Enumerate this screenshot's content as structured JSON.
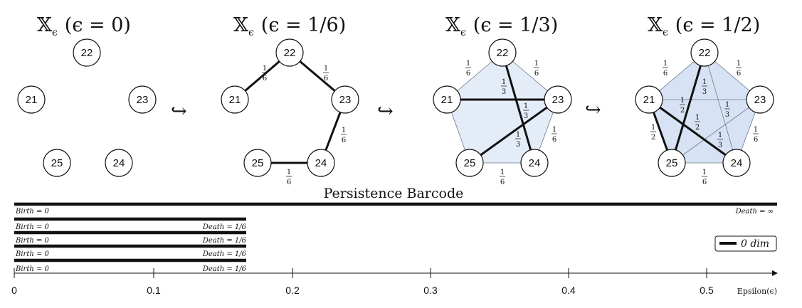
{
  "panels": [
    {
      "symbol": "𝕏",
      "sub": "ϵ",
      "param": "(ϵ = 0)"
    },
    {
      "symbol": "𝕏",
      "sub": "ϵ",
      "param": "(ϵ = 1/6)"
    },
    {
      "symbol": "𝕏",
      "sub": "ϵ",
      "param": "(ϵ = 1/3)"
    },
    {
      "symbol": "𝕏",
      "sub": "ϵ",
      "param": "(ϵ = 1/2)"
    }
  ],
  "nodes": [
    "22",
    "21",
    "23",
    "25",
    "24"
  ],
  "inclusion_arrow": "↪",
  "barcode": {
    "title": "Persistence Barcode",
    "axis_label": "Epsilon(ϵ)",
    "ticks": [
      "0",
      "0.1",
      "0.2",
      "0.3",
      "0.4",
      "0.5"
    ],
    "legend": "0 dim",
    "bars": [
      {
        "birth_label": "Birth = 0",
        "death_label": "Death = ∞",
        "birth": 0,
        "death": "infinity"
      },
      {
        "birth_label": "Birth = 0",
        "death_label": "Death = 1/6",
        "birth": 0,
        "death": 0.1667
      },
      {
        "birth_label": "Birth = 0",
        "death_label": "Death = 1/6",
        "birth": 0,
        "death": 0.1667
      },
      {
        "birth_label": "Birth = 0",
        "death_label": "Death = 1/6",
        "birth": 0,
        "death": 0.1667
      },
      {
        "birth_label": "Birth = 0",
        "death_label": "Death = 1/6",
        "birth": 0,
        "death": 0.1667
      }
    ]
  }
}
